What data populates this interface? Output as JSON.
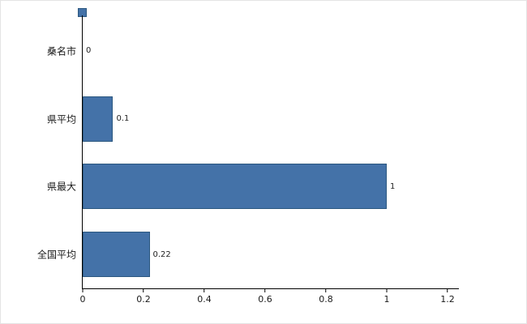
{
  "chart_data": {
    "type": "bar",
    "orientation": "horizontal",
    "title": "",
    "categories": [
      "桑名市",
      "県平均",
      "県最大",
      "全国平均"
    ],
    "values": [
      0,
      0.1,
      1,
      0.22
    ],
    "value_labels": [
      "0",
      "0.1",
      "1",
      "0.22"
    ],
    "xlim": [
      0,
      1.2
    ],
    "x_ticks": [
      {
        "value": 0,
        "label": "0"
      },
      {
        "value": 0.2,
        "label": "0.2"
      },
      {
        "value": 0.4,
        "label": "0.4"
      },
      {
        "value": 0.6,
        "label": "0.6"
      },
      {
        "value": 0.8,
        "label": "0.8"
      },
      {
        "value": 1,
        "label": "1"
      },
      {
        "value": 1.2,
        "label": "1.2"
      }
    ],
    "bar_color": "#4472a8",
    "bar_border_color": "#2c5880",
    "axis_color": "#000000",
    "grid": false,
    "legend": "none"
  }
}
